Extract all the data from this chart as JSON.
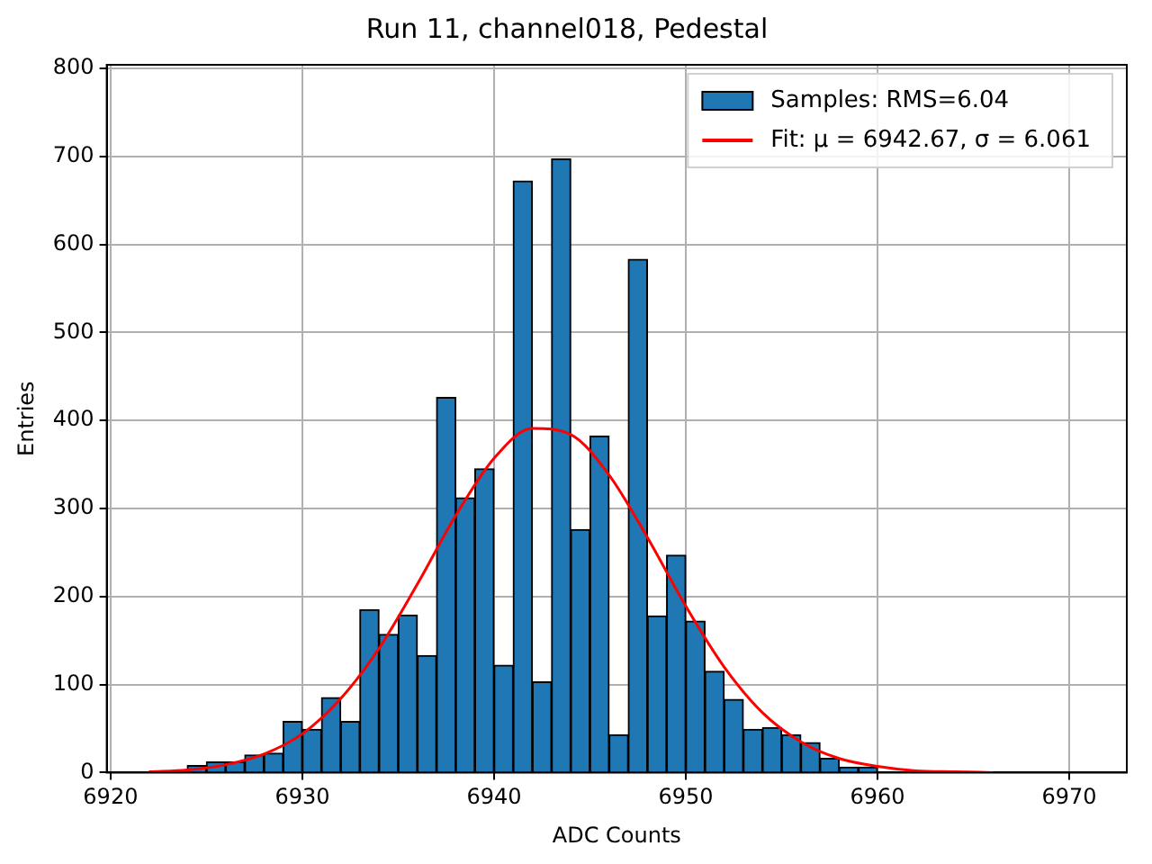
{
  "chart_data": {
    "type": "histogram",
    "title": "Run 11, channel018, Pedestal",
    "xlabel": "ADC Counts",
    "ylabel": "Entries",
    "bins": [
      6924,
      6925,
      6926,
      6927,
      6928,
      6929,
      6930,
      6931,
      6932,
      6933,
      6934,
      6935,
      6936,
      6937,
      6938,
      6939,
      6940,
      6941,
      6942,
      6943,
      6944,
      6945,
      6946,
      6947,
      6948,
      6949,
      6950,
      6951,
      6952,
      6953,
      6954,
      6955,
      6956,
      6957,
      6958,
      6959,
      6960
    ],
    "series": [
      {
        "name": "Samples: RMS=6.04",
        "color": "#1f77b4",
        "values": [
          8,
          12,
          12,
          20,
          22,
          58,
          49,
          85,
          58,
          185,
          157,
          179,
          133,
          426,
          312,
          345,
          122,
          672,
          103,
          697,
          276,
          382,
          43,
          583,
          178,
          247,
          172,
          115,
          83,
          49,
          51,
          43,
          34,
          16,
          6,
          6
        ]
      },
      {
        "type": "line",
        "name": "Fit: μ = 6942.67, σ = 6.061",
        "color": "#ff0000",
        "x": [
          6922,
          6924,
          6926,
          6928,
          6930,
          6932,
          6934,
          6936,
          6938,
          6940,
          6942,
          6944,
          6946,
          6948,
          6950,
          6952,
          6954,
          6956,
          6958,
          6960,
          6962,
          6964,
          6966
        ],
        "values": [
          1,
          3,
          9,
          21,
          44,
          84,
          141,
          214,
          292,
          357,
          391,
          384,
          338,
          267,
          189,
          120,
          68,
          35,
          16,
          7,
          2,
          1,
          0
        ]
      }
    ],
    "xlim": [
      6919.8,
      6973
    ],
    "xticks": [
      6920,
      6930,
      6940,
      6950,
      6960,
      6970
    ],
    "ylim": [
      0,
      804
    ],
    "yticks": [
      0,
      100,
      200,
      300,
      400,
      500,
      600,
      700,
      800
    ],
    "grid": true,
    "legend": "top right"
  }
}
